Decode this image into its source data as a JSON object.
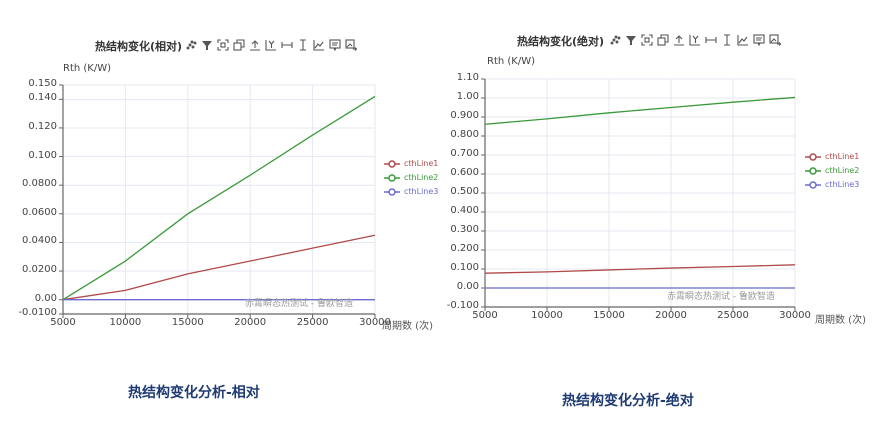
{
  "toolbar_icons": [
    "scatter-select-icon",
    "filter-icon",
    "zoom-area-icon",
    "copy-icon",
    "upload-icon",
    "y-axis-icon",
    "horizontal-range-icon",
    "vertical-range-icon",
    "line-chart-icon",
    "comment-icon",
    "save-image-icon"
  ],
  "colors": {
    "line1": "#b04a4a",
    "line2": "#3a9a3a",
    "line3": "#6b6bd0",
    "caption": "#1f3b73",
    "grid": "#e6e9f2"
  },
  "left": {
    "title": "热结构变化(相对)",
    "y_unit": "Rth  (K/W)",
    "x_name": "周期数 (次)",
    "watermark": "赤霄瞬态热测试 - 鲁欧智造",
    "caption": "热结构变化分析-相对",
    "y_ticks": [
      "0.150",
      "0.140",
      "0.120",
      "0.100",
      "0.0800",
      "0.0600",
      "0.0400",
      "0.0200",
      "0.00",
      "-0.0100"
    ],
    "x_ticks": [
      "5000",
      "10000",
      "15000",
      "20000",
      "25000",
      "30000"
    ],
    "legend": [
      "cthLine1",
      "cthLine2",
      "cthLine3"
    ]
  },
  "right": {
    "title": "热结构变化(绝对)",
    "y_unit": "Rth  (K/W)",
    "x_name": "周期数 (次)",
    "watermark": "赤霄瞬态热测试 - 鲁欧智造",
    "caption": "热结构变化分析-绝对",
    "y_ticks": [
      "1.10",
      "1.00",
      "0.900",
      "0.800",
      "0.700",
      "0.600",
      "0.500",
      "0.400",
      "0.300",
      "0.200",
      "0.100",
      "0.00",
      "-0.100"
    ],
    "x_ticks": [
      "5000",
      "10000",
      "15000",
      "20000",
      "25000",
      "30000"
    ],
    "legend": [
      "cthLine1",
      "cthLine2",
      "cthLine3"
    ]
  },
  "chart_data": [
    {
      "type": "line",
      "title": "热结构变化(相对)",
      "xlabel": "周期数 (次)",
      "ylabel": "Rth (K/W)",
      "x": [
        5000,
        10000,
        15000,
        20000,
        25000,
        30000
      ],
      "xlim": [
        5000,
        30000
      ],
      "ylim": [
        -0.01,
        0.15
      ],
      "grid": true,
      "legend_position": "right",
      "series": [
        {
          "name": "cthLine1",
          "values": [
            0.0,
            0.0065,
            0.018,
            0.027,
            0.036,
            0.045
          ]
        },
        {
          "name": "cthLine2",
          "values": [
            0.0,
            0.027,
            0.06,
            0.087,
            0.115,
            0.142
          ]
        },
        {
          "name": "cthLine3",
          "values": [
            0.0,
            0.0,
            0.0,
            0.0,
            0.0,
            0.0
          ]
        }
      ]
    },
    {
      "type": "line",
      "title": "热结构变化(绝对)",
      "xlabel": "周期数 (次)",
      "ylabel": "Rth (K/W)",
      "x": [
        5000,
        10000,
        15000,
        20000,
        25000,
        30000
      ],
      "xlim": [
        5000,
        30000
      ],
      "ylim": [
        -0.1,
        1.1
      ],
      "grid": true,
      "legend_position": "right",
      "series": [
        {
          "name": "cthLine1",
          "values": [
            0.078,
            0.085,
            0.095,
            0.105,
            0.113,
            0.122
          ]
        },
        {
          "name": "cthLine2",
          "values": [
            0.862,
            0.89,
            0.922,
            0.95,
            0.978,
            1.003
          ]
        },
        {
          "name": "cthLine3",
          "values": [
            0.0,
            0.0,
            0.0,
            0.0,
            0.0,
            0.0
          ]
        }
      ]
    }
  ]
}
